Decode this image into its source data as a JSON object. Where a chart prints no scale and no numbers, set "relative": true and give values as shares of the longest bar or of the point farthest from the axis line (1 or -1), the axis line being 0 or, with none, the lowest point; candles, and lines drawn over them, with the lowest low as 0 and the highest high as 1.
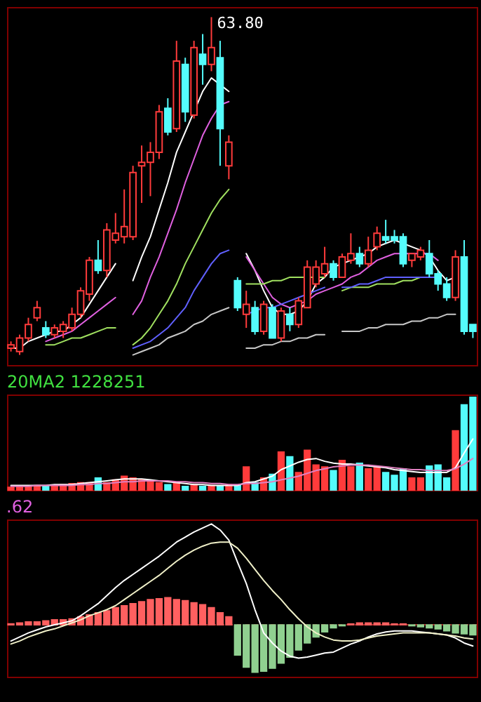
{
  "chart_data": [
    {
      "type": "candlestick",
      "relative": true,
      "categories": [
        null,
        null,
        null,
        null,
        null,
        null,
        null,
        null,
        null,
        null,
        null,
        null,
        null,
        null,
        null,
        null,
        null,
        null,
        null,
        null,
        null,
        null,
        null,
        null,
        null,
        null,
        null,
        null,
        null,
        null,
        null,
        null,
        null,
        null,
        null,
        null,
        null,
        null,
        null,
        null,
        null,
        null,
        null,
        null,
        null,
        null,
        null,
        null,
        null,
        null,
        null,
        null,
        null,
        null
      ],
      "ohlc": [
        [
          0.02,
          0.04,
          0.01,
          0.03
        ],
        [
          0.01,
          0.06,
          0.0,
          0.05
        ],
        [
          0.05,
          0.11,
          0.04,
          0.09
        ],
        [
          0.11,
          0.16,
          0.1,
          0.14
        ],
        [
          0.08,
          0.1,
          0.05,
          0.06
        ],
        [
          0.06,
          0.09,
          0.05,
          0.08
        ],
        [
          0.07,
          0.1,
          0.05,
          0.09
        ],
        [
          0.08,
          0.14,
          0.07,
          0.12
        ],
        [
          0.12,
          0.2,
          0.11,
          0.19
        ],
        [
          0.18,
          0.29,
          0.16,
          0.28
        ],
        [
          0.28,
          0.34,
          0.24,
          0.25
        ],
        [
          0.25,
          0.39,
          0.23,
          0.37
        ],
        [
          0.34,
          0.42,
          0.33,
          0.36
        ],
        [
          0.35,
          0.49,
          0.33,
          0.38
        ],
        [
          0.35,
          0.56,
          0.34,
          0.54
        ],
        [
          0.56,
          0.62,
          0.45,
          0.57
        ],
        [
          0.57,
          0.63,
          0.47,
          0.6
        ],
        [
          0.6,
          0.74,
          0.58,
          0.72
        ],
        [
          0.73,
          0.76,
          0.65,
          0.66
        ],
        [
          0.67,
          0.93,
          0.66,
          0.87
        ],
        [
          0.86,
          0.88,
          0.69,
          0.72
        ],
        [
          0.71,
          0.93,
          0.7,
          0.91
        ],
        [
          0.89,
          0.95,
          0.8,
          0.86
        ],
        [
          0.86,
          1.0,
          0.84,
          0.91
        ],
        [
          0.88,
          0.93,
          0.56,
          0.67
        ],
        [
          0.56,
          0.65,
          0.52,
          0.63
        ],
        [
          0.22,
          0.23,
          0.13,
          0.14
        ],
        [
          0.12,
          0.19,
          0.08,
          0.15
        ],
        [
          0.14,
          0.16,
          0.06,
          0.07
        ],
        [
          0.07,
          0.16,
          0.06,
          0.15
        ],
        [
          0.14,
          0.15,
          0.05,
          0.05
        ],
        [
          0.05,
          0.14,
          0.04,
          0.13
        ],
        [
          0.12,
          0.14,
          0.07,
          0.09
        ],
        [
          0.09,
          0.17,
          0.08,
          0.16
        ],
        [
          0.14,
          0.28,
          0.14,
          0.26
        ],
        [
          0.21,
          0.28,
          0.2,
          0.26
        ],
        [
          0.24,
          0.32,
          0.23,
          0.27
        ],
        [
          0.27,
          0.28,
          0.22,
          0.23
        ],
        [
          0.23,
          0.3,
          0.23,
          0.29
        ],
        [
          0.28,
          0.36,
          0.27,
          0.3
        ],
        [
          0.3,
          0.32,
          0.26,
          0.27
        ],
        [
          0.27,
          0.35,
          0.26,
          0.31
        ],
        [
          0.32,
          0.38,
          0.31,
          0.36
        ],
        [
          0.35,
          0.4,
          0.33,
          0.34
        ],
        [
          0.35,
          0.37,
          0.33,
          0.34
        ],
        [
          0.35,
          0.36,
          0.26,
          0.27
        ],
        [
          0.28,
          0.3,
          0.26,
          0.3
        ],
        [
          0.29,
          0.32,
          0.28,
          0.31
        ],
        [
          0.3,
          0.34,
          0.23,
          0.24
        ],
        [
          0.24,
          0.25,
          0.19,
          0.21
        ],
        [
          0.21,
          0.23,
          0.16,
          0.17
        ],
        [
          0.17,
          0.31,
          0.16,
          0.29
        ],
        [
          0.29,
          0.34,
          0.06,
          0.07
        ],
        [
          0.09,
          0.09,
          0.05,
          0.07
        ]
      ],
      "colors": [
        "#ff3b3b",
        "#ff3b3b",
        "#ff3b3b",
        "#ff3b3b",
        "#54fcfc",
        "#ff3b3b",
        "#ff3b3b",
        "#ff3b3b",
        "#ff3b3b",
        "#ff3b3b",
        "#54fcfc",
        "#ff3b3b",
        "#ff3b3b",
        "#ff3b3b",
        "#ff3b3b",
        "#ff3b3b",
        "#ff3b3b",
        "#ff3b3b",
        "#54fcfc",
        "#ff3b3b",
        "#54fcfc",
        "#ff3b3b",
        "#54fcfc",
        "#ff3b3b",
        "#54fcfc",
        "#ff3b3b",
        "#54fcfc",
        "#ff3b3b",
        "#54fcfc",
        "#ff3b3b",
        "#54fcfc",
        "#ff3b3b",
        "#54fcfc",
        "#ff3b3b",
        "#ff3b3b",
        "#ff3b3b",
        "#ff3b3b",
        "#54fcfc",
        "#ff3b3b",
        "#ff3b3b",
        "#54fcfc",
        "#ff3b3b",
        "#ff3b3b",
        "#54fcfc",
        "#54fcfc",
        "#54fcfc",
        "#ff3b3b",
        "#ff3b3b",
        "#54fcfc",
        "#54fcfc",
        "#54fcfc",
        "#ff3b3b",
        "#54fcfc",
        "#54fcfc"
      ],
      "series": [
        {
          "type": "line",
          "color": "#ffffff",
          "values": [
            0.02,
            0.02,
            0.04,
            0.05,
            0.06,
            0.07,
            0.07,
            0.09,
            0.11,
            0.15,
            0.19,
            0.23,
            0.27,
            null,
            0.22,
            0.29,
            0.35,
            0.43,
            0.51,
            0.6,
            0.66,
            0.72,
            0.78,
            0.82,
            0.8,
            0.78,
            null,
            0.3,
            0.25,
            0.19,
            0.14,
            0.12,
            0.12,
            0.13,
            0.16,
            0.21,
            0.23,
            0.26,
            0.27,
            0.28,
            0.29,
            0.3,
            0.32,
            0.33,
            0.34,
            0.33,
            0.32,
            0.31,
            0.29,
            0.25,
            0.22,
            0.23,
            null,
            null
          ]
        },
        {
          "type": "line",
          "color": "#e060e0",
          "values": [
            null,
            null,
            null,
            null,
            0.04,
            0.05,
            0.06,
            0.07,
            0.09,
            0.11,
            0.13,
            0.15,
            0.17,
            null,
            0.12,
            0.16,
            0.23,
            0.29,
            0.36,
            0.43,
            0.51,
            0.58,
            0.65,
            0.7,
            0.74,
            0.75,
            null,
            0.29,
            0.25,
            0.21,
            0.17,
            0.15,
            0.14,
            0.15,
            0.16,
            0.18,
            0.19,
            0.2,
            0.21,
            0.23,
            0.24,
            0.26,
            0.28,
            0.29,
            0.3,
            0.3,
            0.3,
            0.3,
            0.3,
            0.28,
            null,
            null,
            null,
            null
          ]
        },
        {
          "type": "line",
          "color": "#a0e060",
          "values": [
            null,
            null,
            null,
            null,
            0.03,
            0.03,
            0.04,
            0.05,
            0.05,
            0.06,
            0.07,
            0.08,
            0.08,
            null,
            0.03,
            0.05,
            0.08,
            0.12,
            0.16,
            0.21,
            0.27,
            0.32,
            0.37,
            0.42,
            0.46,
            0.49,
            null,
            0.21,
            0.21,
            0.21,
            0.22,
            0.22,
            0.23,
            0.23,
            0.23,
            0.23,
            0.23,
            null,
            0.19,
            0.2,
            0.2,
            0.2,
            0.21,
            0.21,
            0.21,
            0.22,
            0.22,
            0.23,
            0.23,
            0.23,
            null,
            null,
            null,
            null
          ]
        },
        {
          "type": "line",
          "color": "#6060ff",
          "values": [
            null,
            null,
            null,
            null,
            null,
            null,
            null,
            null,
            null,
            null,
            null,
            null,
            null,
            null,
            0.02,
            0.03,
            0.04,
            0.06,
            0.08,
            0.11,
            0.14,
            0.19,
            0.23,
            0.27,
            0.3,
            0.31,
            null,
            0.12,
            0.13,
            0.14,
            0.14,
            0.15,
            0.16,
            0.17,
            0.18,
            0.19,
            0.2,
            null,
            0.2,
            0.2,
            0.21,
            0.21,
            0.22,
            0.23,
            0.23,
            0.23,
            0.23,
            0.23,
            0.23,
            0.23,
            null,
            null,
            null,
            null
          ]
        },
        {
          "type": "line",
          "color": "#c8c8c8",
          "values": [
            null,
            null,
            null,
            null,
            null,
            null,
            null,
            null,
            null,
            null,
            null,
            null,
            null,
            null,
            0.0,
            0.01,
            0.02,
            0.03,
            0.05,
            0.06,
            0.07,
            0.09,
            0.1,
            0.12,
            0.13,
            0.14,
            null,
            0.02,
            0.02,
            0.03,
            0.03,
            0.04,
            0.04,
            0.05,
            0.05,
            0.06,
            0.06,
            null,
            0.07,
            0.07,
            0.07,
            0.08,
            0.08,
            0.09,
            0.09,
            0.09,
            0.1,
            0.1,
            0.11,
            0.11,
            0.12,
            0.12,
            null,
            null
          ]
        }
      ],
      "annotations": [
        "63.80"
      ]
    },
    {
      "type": "bar",
      "relative": true,
      "title": "20MA2 1228251",
      "categories": [
        null,
        null,
        null,
        null,
        null,
        null,
        null,
        null,
        null,
        null,
        null,
        null,
        null,
        null,
        null,
        null,
        null,
        null,
        null,
        null,
        null,
        null,
        null,
        null,
        null,
        null,
        null,
        null,
        null,
        null,
        null,
        null,
        null,
        null,
        null,
        null,
        null,
        null,
        null,
        null,
        null,
        null,
        null,
        null,
        null,
        null,
        null,
        null,
        null,
        null,
        null,
        null,
        null,
        null
      ],
      "series": [
        {
          "colors": [
            "#ff3b3b",
            "#ff3b3b",
            "#ff3b3b",
            "#ff3b3b",
            "#54fcfc",
            "#ff3b3b",
            "#ff3b3b",
            "#ff3b3b",
            "#ff3b3b",
            "#ff3b3b",
            "#54fcfc",
            "#ff3b3b",
            "#ff3b3b",
            "#ff3b3b",
            "#ff3b3b",
            "#ff3b3b",
            "#ff3b3b",
            "#ff3b3b",
            "#54fcfc",
            "#ff3b3b",
            "#54fcfc",
            "#ff3b3b",
            "#54fcfc",
            "#ff3b3b",
            "#54fcfc",
            "#ff3b3b",
            "#54fcfc",
            "#ff3b3b",
            "#54fcfc",
            "#ff3b3b",
            "#54fcfc",
            "#ff3b3b",
            "#54fcfc",
            "#ff3b3b",
            "#ff3b3b",
            "#ff3b3b",
            "#ff3b3b",
            "#54fcfc",
            "#ff3b3b",
            "#ff3b3b",
            "#54fcfc",
            "#ff3b3b",
            "#ff3b3b",
            "#54fcfc",
            "#54fcfc",
            "#54fcfc",
            "#ff3b3b",
            "#ff3b3b",
            "#54fcfc",
            "#54fcfc",
            "#54fcfc",
            "#ff3b3b",
            "#54fcfc",
            "#54fcfc"
          ],
          "values": [
            0.03,
            0.04,
            0.04,
            0.05,
            0.04,
            0.05,
            0.06,
            0.07,
            0.08,
            0.08,
            0.13,
            0.08,
            0.11,
            0.15,
            0.13,
            0.11,
            0.09,
            0.08,
            0.06,
            0.08,
            0.04,
            0.06,
            0.04,
            0.05,
            0.04,
            0.06,
            0.05,
            0.25,
            0.08,
            0.13,
            0.17,
            0.41,
            0.36,
            0.19,
            0.43,
            0.27,
            0.25,
            0.21,
            0.32,
            0.25,
            0.29,
            0.23,
            0.25,
            0.19,
            0.16,
            0.23,
            0.13,
            0.13,
            0.26,
            0.27,
            0.13,
            0.64,
            0.92,
            1.0
          ]
        },
        {
          "type": "line",
          "color": "#ffffff",
          "values": [
            0.05,
            0.05,
            0.05,
            0.05,
            0.05,
            0.06,
            0.06,
            0.06,
            0.07,
            0.08,
            0.09,
            0.1,
            0.11,
            0.12,
            0.12,
            0.12,
            0.11,
            0.1,
            0.09,
            0.08,
            0.07,
            0.06,
            0.06,
            0.05,
            0.05,
            0.05,
            0.05,
            0.08,
            0.09,
            0.12,
            0.15,
            0.22,
            0.26,
            0.3,
            0.33,
            0.34,
            0.31,
            0.29,
            0.28,
            0.28,
            0.27,
            0.26,
            0.25,
            0.24,
            0.22,
            0.21,
            0.2,
            0.19,
            0.19,
            0.19,
            0.19,
            0.24,
            0.4,
            0.55
          ]
        },
        {
          "type": "line",
          "color": "#e080c0",
          "values": [
            0.04,
            0.04,
            0.04,
            0.05,
            0.05,
            0.05,
            0.05,
            0.05,
            0.06,
            0.06,
            0.07,
            0.07,
            0.08,
            0.09,
            0.09,
            0.1,
            0.1,
            0.1,
            0.1,
            0.09,
            0.09,
            0.08,
            0.08,
            0.07,
            0.07,
            0.06,
            0.06,
            0.07,
            0.07,
            0.08,
            0.09,
            0.11,
            0.13,
            0.15,
            0.18,
            0.21,
            0.23,
            0.25,
            0.26,
            0.27,
            0.27,
            0.27,
            0.26,
            0.25,
            0.24,
            0.23,
            0.22,
            0.22,
            0.21,
            0.21,
            0.21,
            0.23,
            0.28,
            0.34
          ]
        }
      ]
    },
    {
      "type": "bar",
      "relative": true,
      "title": ".62",
      "ref_lines": [
        {
          "axis": "y",
          "value": 0,
          "color": "#a02020",
          "line_style": "dashed"
        }
      ],
      "categories": [
        null,
        null,
        null,
        null,
        null,
        null,
        null,
        null,
        null,
        null,
        null,
        null,
        null,
        null,
        null,
        null,
        null,
        null,
        null,
        null,
        null,
        null,
        null,
        null,
        null,
        null,
        null,
        null,
        null,
        null,
        null,
        null,
        null,
        null,
        null,
        null,
        null,
        null,
        null,
        null,
        null,
        null,
        null,
        null,
        null,
        null,
        null,
        null,
        null,
        null,
        null,
        null,
        null,
        null
      ],
      "colors": [
        "#ff6060",
        "#ff6060",
        "#ff6060",
        "#ff6060",
        "#ff6060",
        "#ff6060",
        "#ff6060",
        "#ff6060",
        "#ff6060",
        "#ff6060",
        "#ff6060",
        "#ff6060",
        "#ff6060",
        "#ff6060",
        "#ff6060",
        "#ff6060",
        "#ff6060",
        "#ff6060",
        "#ff6060",
        "#ff6060",
        "#ff6060",
        "#ff6060",
        "#ff6060",
        "#ff6060",
        "#ff6060",
        "#ff6060",
        "#90d090",
        "#90d090",
        "#90d090",
        "#90d090",
        "#90d090",
        "#90d090",
        "#90d090",
        "#90d090",
        "#90d090",
        "#90d090",
        "#90d090",
        "#90d090",
        "#90d090",
        "#ff6060",
        "#ff6060",
        "#ff6060",
        "#ff6060",
        "#ff6060",
        "#ff6060",
        "#ff6060",
        "#90d090",
        "#90d090",
        "#90d090",
        "#90d090",
        "#90d090",
        "#90d090",
        "#90d090",
        "#90d090"
      ],
      "values": [
        0.01,
        0.02,
        0.03,
        0.03,
        0.04,
        0.05,
        0.05,
        0.06,
        0.08,
        0.1,
        0.12,
        0.14,
        0.17,
        0.19,
        0.21,
        0.23,
        0.25,
        0.26,
        0.27,
        0.25,
        0.24,
        0.22,
        0.2,
        0.17,
        0.12,
        0.08,
        -0.3,
        -0.42,
        -0.47,
        -0.46,
        -0.43,
        -0.38,
        -0.32,
        -0.25,
        -0.18,
        -0.12,
        -0.07,
        -0.03,
        -0.01,
        0.01,
        0.02,
        0.02,
        0.02,
        0.02,
        0.01,
        0.01,
        -0.01,
        -0.02,
        -0.03,
        -0.04,
        -0.06,
        -0.08,
        -0.09,
        -0.1
      ],
      "series": [
        {
          "type": "line",
          "color": "#ffffff",
          "values": [
            -0.16,
            -0.12,
            -0.08,
            -0.05,
            -0.02,
            0.0,
            0.02,
            0.04,
            0.09,
            0.15,
            0.21,
            0.29,
            0.37,
            0.44,
            0.5,
            0.56,
            0.62,
            0.68,
            0.75,
            0.82,
            0.87,
            0.92,
            0.96,
            1.0,
            0.94,
            0.84,
            0.62,
            0.41,
            0.15,
            -0.08,
            -0.18,
            -0.26,
            -0.31,
            -0.33,
            -0.32,
            -0.3,
            -0.28,
            -0.27,
            -0.23,
            -0.19,
            -0.16,
            -0.12,
            -0.09,
            -0.07,
            -0.06,
            -0.06,
            -0.06,
            -0.07,
            -0.08,
            -0.09,
            -0.1,
            -0.13,
            -0.18,
            -0.21
          ]
        },
        {
          "type": "line",
          "color": "#f0f0c8",
          "values": [
            -0.19,
            -0.16,
            -0.12,
            -0.09,
            -0.06,
            -0.04,
            -0.01,
            0.02,
            0.05,
            0.09,
            0.12,
            0.15,
            0.19,
            0.25,
            0.31,
            0.37,
            0.43,
            0.49,
            0.56,
            0.63,
            0.69,
            0.74,
            0.78,
            0.81,
            0.82,
            0.82,
            0.76,
            0.66,
            0.55,
            0.44,
            0.34,
            0.25,
            0.15,
            0.06,
            -0.02,
            -0.08,
            -0.12,
            -0.15,
            -0.16,
            -0.16,
            -0.15,
            -0.13,
            -0.11,
            -0.1,
            -0.09,
            -0.08,
            -0.08,
            -0.08,
            -0.08,
            -0.09,
            -0.1,
            -0.11,
            -0.13,
            -0.14
          ]
        }
      ]
    }
  ]
}
